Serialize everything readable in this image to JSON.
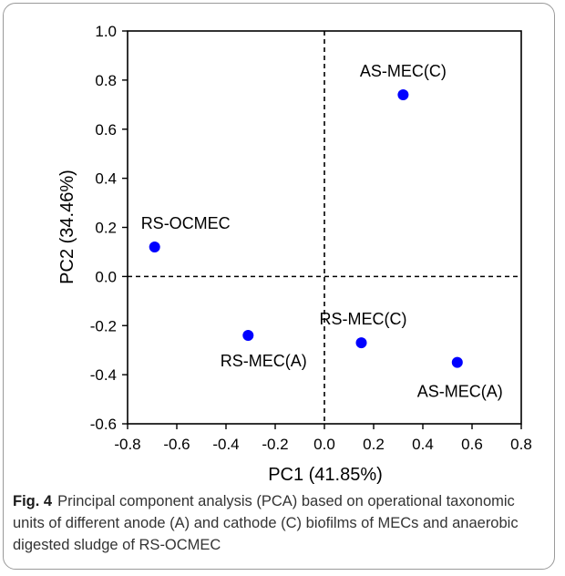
{
  "chart_data": {
    "type": "scatter",
    "xlabel": "PC1 (41.85%)",
    "ylabel": "PC2 (34.46%)",
    "xlim": [
      -0.8,
      0.8
    ],
    "ylim": [
      -0.6,
      1.0
    ],
    "xticks": [
      "-0.8",
      "-0.6",
      "-0.4",
      "-0.2",
      "0.0",
      "0.2",
      "0.4",
      "0.6",
      "0.8"
    ],
    "yticks": [
      "-0.6",
      "-0.4",
      "-0.2",
      "0.0",
      "0.2",
      "0.4",
      "0.6",
      "0.8",
      "1.0"
    ],
    "marker_color": "#0000ff",
    "reference_lines": {
      "x": 0.0,
      "y": 0.0,
      "style": "dashed"
    },
    "points": [
      {
        "label": "AS-MEC(C)",
        "x": 0.32,
        "y": 0.74
      },
      {
        "label": "RS-OCMEC",
        "x": -0.69,
        "y": 0.12
      },
      {
        "label": "RS-MEC(A)",
        "x": -0.31,
        "y": -0.24
      },
      {
        "label": "RS-MEC(C)",
        "x": 0.15,
        "y": -0.27
      },
      {
        "label": "AS-MEC(A)",
        "x": 0.54,
        "y": -0.35
      }
    ]
  },
  "caption": {
    "figure_label": "Fig. 4",
    "text": "Principal component analysis (PCA) based on operational taxonomic units of different anode (A) and cathode (C) biofilms of MECs and anaerobic digested sludge of RS-OCMEC"
  }
}
